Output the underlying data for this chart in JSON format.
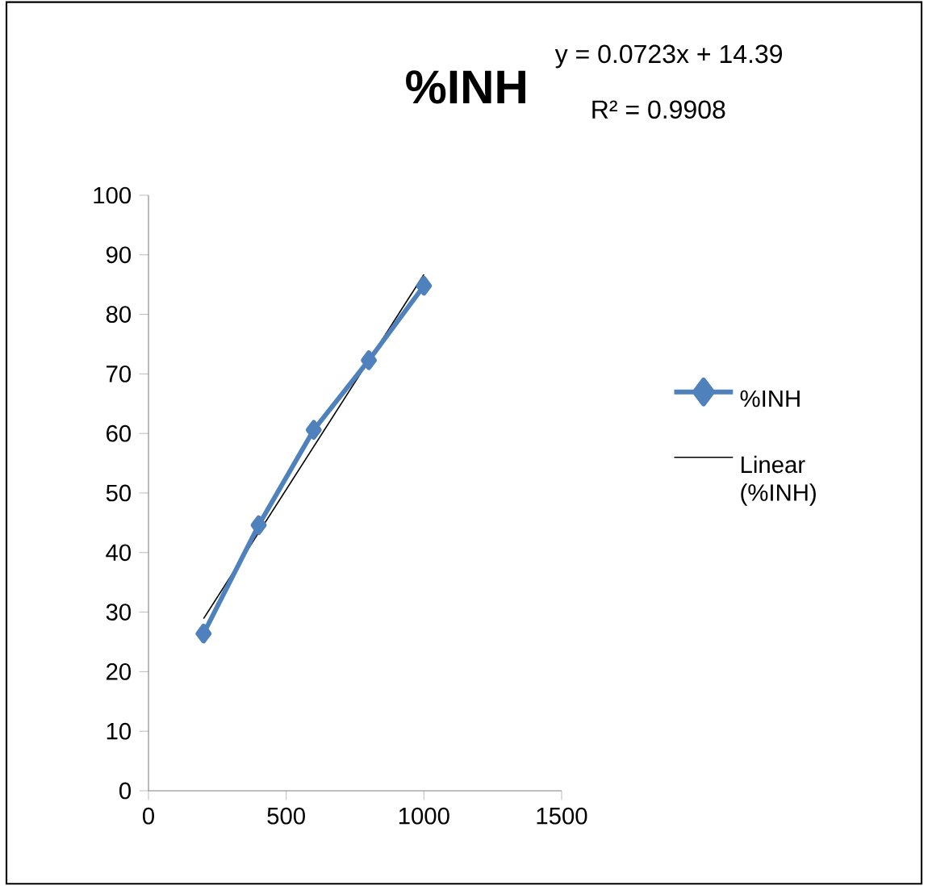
{
  "chart_data": {
    "type": "line",
    "title": "%INH",
    "annotations": [
      "y = 0.0723x + 14.39",
      "R² = 0.9908"
    ],
    "series": [
      {
        "name": "%INH",
        "color": "#4f81bd",
        "x": [
          200,
          400,
          600,
          800,
          1000
        ],
        "values": [
          26.4,
          44.6,
          60.6,
          72.3,
          84.8
        ],
        "marker": "diamond"
      },
      {
        "name": "Linear (%INH)",
        "type": "line",
        "color": "#000000",
        "x": [
          200,
          1000
        ],
        "values": [
          28.9,
          86.7
        ],
        "marker": "none"
      }
    ],
    "xlim": [
      0,
      1500
    ],
    "xticks": [
      0,
      500,
      1000,
      1500
    ],
    "ylim": [
      0,
      100
    ],
    "yticks": [
      0,
      10,
      20,
      30,
      40,
      50,
      60,
      70,
      80,
      90,
      100
    ],
    "grid": false,
    "legend": "right"
  }
}
